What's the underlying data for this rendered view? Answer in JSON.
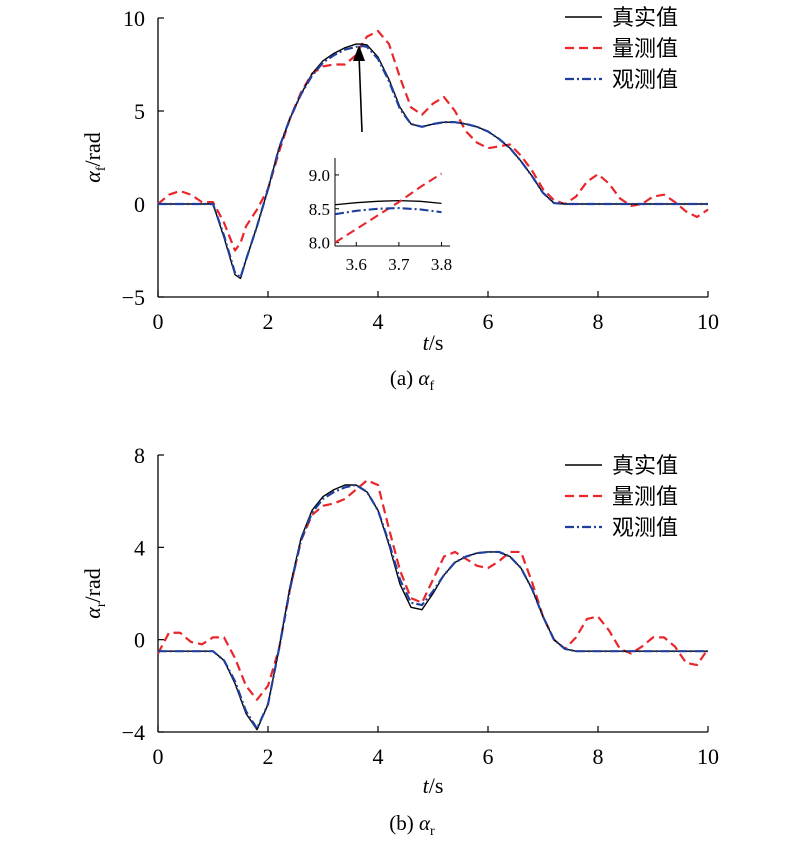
{
  "chart_data": [
    {
      "type": "line",
      "caption": "(a) α_f",
      "caption_prefix": "(a)",
      "caption_symbol": "α",
      "caption_sub": "f",
      "xlabel": "t/s",
      "ylabel_symbol": "α",
      "ylabel_sub": "f",
      "ylabel_unit": "/rad",
      "xlim": [
        0,
        10
      ],
      "ylim": [
        -5,
        10
      ],
      "xticks": [
        "0",
        "2",
        "4",
        "6",
        "8",
        "10"
      ],
      "yticks": [
        "−5",
        "0",
        "5",
        "10"
      ],
      "legend_position": "top-right",
      "x": [
        0,
        0.2,
        0.4,
        0.6,
        0.8,
        1.0,
        1.2,
        1.4,
        1.5,
        1.6,
        1.8,
        2.0,
        2.2,
        2.4,
        2.6,
        2.8,
        3.0,
        3.2,
        3.4,
        3.6,
        3.7,
        3.8,
        4.0,
        4.2,
        4.4,
        4.6,
        4.8,
        5.0,
        5.2,
        5.4,
        5.6,
        5.8,
        6.0,
        6.2,
        6.4,
        6.6,
        6.8,
        7.0,
        7.2,
        7.4,
        7.6,
        7.8,
        8.0,
        8.2,
        8.4,
        8.6,
        8.8,
        9.0,
        9.2,
        9.4,
        9.6,
        9.8,
        10.0
      ],
      "series": [
        {
          "name": "真实值",
          "color": "#000000",
          "style": "solid",
          "values": [
            0,
            0,
            0,
            0,
            0,
            0,
            -1.8,
            -3.8,
            -4.0,
            -3.0,
            -1.2,
            0.8,
            3.0,
            4.6,
            5.9,
            7.0,
            7.7,
            8.1,
            8.4,
            8.6,
            8.6,
            8.55,
            7.9,
            6.7,
            5.2,
            4.3,
            4.15,
            4.3,
            4.4,
            4.4,
            4.3,
            4.15,
            3.9,
            3.5,
            3.0,
            2.3,
            1.5,
            0.6,
            0.05,
            0,
            0,
            0,
            0,
            0,
            0,
            0,
            0,
            0,
            0,
            0,
            0,
            0,
            0
          ]
        },
        {
          "name": "量测值",
          "color": "#e8262b",
          "style": "dashed",
          "values": [
            0,
            0.5,
            0.7,
            0.5,
            0.1,
            0.1,
            -1.0,
            -2.5,
            -2.1,
            -1.2,
            -0.3,
            0.8,
            2.8,
            4.6,
            6.0,
            7.0,
            7.4,
            7.5,
            7.5,
            8.0,
            8.55,
            9.0,
            9.3,
            8.6,
            6.8,
            5.2,
            4.8,
            5.4,
            5.75,
            5.0,
            3.9,
            3.3,
            3.0,
            3.1,
            3.2,
            2.6,
            1.8,
            0.8,
            0.2,
            0.0,
            0.4,
            1.2,
            1.6,
            1.1,
            0.3,
            -0.1,
            0.0,
            0.4,
            0.5,
            0.1,
            -0.4,
            -0.7,
            -0.3
          ]
        },
        {
          "name": "观测值",
          "color": "#1f3f9e",
          "style": "dashdot",
          "values": [
            0,
            0,
            0,
            0,
            0,
            0,
            -1.7,
            -3.7,
            -3.95,
            -3.0,
            -1.2,
            0.8,
            3.0,
            4.6,
            5.9,
            6.9,
            7.6,
            8.0,
            8.3,
            8.45,
            8.5,
            8.45,
            7.8,
            6.6,
            5.1,
            4.3,
            4.15,
            4.3,
            4.4,
            4.4,
            4.3,
            4.15,
            3.9,
            3.5,
            3.0,
            2.3,
            1.5,
            0.6,
            0.05,
            0,
            0,
            0,
            0,
            0,
            0,
            0,
            0,
            0,
            0,
            0,
            0,
            0,
            0
          ]
        }
      ],
      "annotation": "arrow pointing from inset to the peak near t = 3.7 s",
      "inset": {
        "xlim": [
          3.55,
          3.82
        ],
        "ylim": [
          7.95,
          9.25
        ],
        "xticks": [
          "3.6",
          "3.7",
          "3.8"
        ],
        "yticks": [
          "8.0",
          "8.5",
          "9.0"
        ],
        "x": [
          3.55,
          3.6,
          3.65,
          3.7,
          3.75,
          3.8
        ],
        "series": [
          {
            "name": "真实值",
            "values": [
              8.56,
              8.59,
              8.61,
              8.62,
              8.61,
              8.58
            ]
          },
          {
            "name": "量测值",
            "values": [
              8.0,
              8.2,
              8.4,
              8.6,
              8.82,
              9.02
            ]
          },
          {
            "name": "观测值",
            "values": [
              8.42,
              8.47,
              8.5,
              8.51,
              8.49,
              8.45
            ]
          }
        ]
      }
    },
    {
      "type": "line",
      "caption": "(b) α_r",
      "caption_prefix": "(b)",
      "caption_symbol": "α",
      "caption_sub": "r",
      "xlabel": "t/s",
      "ylabel_symbol": "α",
      "ylabel_sub": "r",
      "ylabel_unit": "/rad",
      "xlim": [
        0,
        10
      ],
      "ylim": [
        -4,
        8
      ],
      "xticks": [
        "0",
        "2",
        "4",
        "6",
        "8",
        "10"
      ],
      "yticks": [
        "−4",
        "0",
        "4",
        "8"
      ],
      "legend_position": "top-right",
      "x": [
        0,
        0.2,
        0.4,
        0.6,
        0.8,
        1.0,
        1.2,
        1.4,
        1.6,
        1.8,
        2.0,
        2.2,
        2.4,
        2.6,
        2.8,
        3.0,
        3.2,
        3.4,
        3.6,
        3.8,
        4.0,
        4.2,
        4.4,
        4.6,
        4.8,
        5.0,
        5.2,
        5.4,
        5.6,
        5.8,
        6.0,
        6.2,
        6.4,
        6.6,
        6.8,
        7.0,
        7.2,
        7.4,
        7.6,
        7.8,
        8.0,
        8.2,
        8.4,
        8.6,
        8.8,
        9.0,
        9.2,
        9.4,
        9.6,
        9.8,
        10.0
      ],
      "series": [
        {
          "name": "真实值",
          "color": "#000000",
          "style": "solid",
          "values": [
            -0.5,
            -0.5,
            -0.5,
            -0.5,
            -0.5,
            -0.5,
            -0.9,
            -1.9,
            -3.2,
            -3.9,
            -2.8,
            -0.4,
            2.3,
            4.4,
            5.6,
            6.2,
            6.5,
            6.7,
            6.7,
            6.4,
            5.6,
            4.1,
            2.4,
            1.4,
            1.3,
            2.0,
            2.8,
            3.35,
            3.6,
            3.75,
            3.8,
            3.8,
            3.6,
            3.1,
            2.2,
            1.0,
            0.0,
            -0.4,
            -0.5,
            -0.5,
            -0.5,
            -0.5,
            -0.5,
            -0.5,
            -0.5,
            -0.5,
            -0.5,
            -0.5,
            -0.5,
            -0.5,
            -0.5
          ]
        },
        {
          "name": "量测值",
          "color": "#e8262b",
          "style": "dashed",
          "values": [
            -0.6,
            0.3,
            0.3,
            -0.1,
            -0.2,
            0.1,
            0.1,
            -0.8,
            -2.0,
            -2.6,
            -2.0,
            -0.4,
            2.2,
            4.3,
            5.4,
            5.8,
            5.9,
            6.1,
            6.5,
            6.9,
            6.7,
            4.8,
            3.0,
            1.8,
            1.6,
            2.6,
            3.6,
            3.8,
            3.5,
            3.2,
            3.1,
            3.4,
            3.8,
            3.8,
            2.5,
            1.0,
            0.0,
            -0.4,
            0.1,
            0.9,
            1.0,
            0.4,
            -0.4,
            -0.6,
            -0.3,
            0.1,
            0.1,
            -0.3,
            -1.0,
            -1.1,
            -0.4
          ]
        },
        {
          "name": "观测值",
          "color": "#1f3f9e",
          "style": "dashdot",
          "values": [
            -0.5,
            -0.5,
            -0.5,
            -0.5,
            -0.5,
            -0.5,
            -0.9,
            -1.8,
            -3.1,
            -3.85,
            -2.8,
            -0.4,
            2.2,
            4.3,
            5.5,
            6.1,
            6.4,
            6.6,
            6.7,
            6.4,
            5.6,
            4.2,
            2.6,
            1.6,
            1.5,
            2.1,
            2.8,
            3.35,
            3.6,
            3.75,
            3.8,
            3.8,
            3.6,
            3.1,
            2.2,
            1.0,
            0.0,
            -0.4,
            -0.5,
            -0.5,
            -0.5,
            -0.5,
            -0.5,
            -0.5,
            -0.5,
            -0.5,
            -0.5,
            -0.5,
            -0.5,
            -0.5,
            -0.5
          ]
        }
      ]
    }
  ]
}
